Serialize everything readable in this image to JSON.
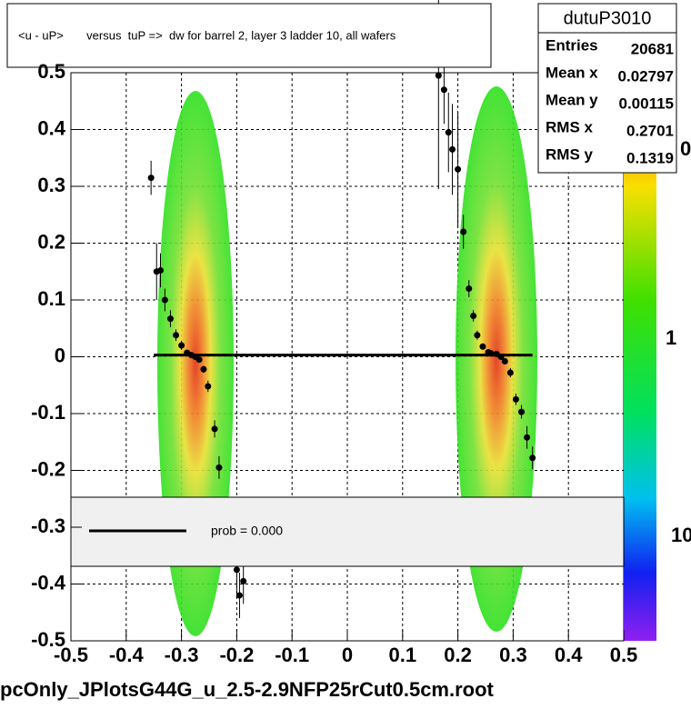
{
  "chart_data": {
    "type": "profile",
    "title": "<u - uP>       versus  tuP =>  dw for barrel 2, layer 3 ladder 10, all wafers",
    "xlim": [
      -0.5,
      0.5
    ],
    "ylim": [
      -0.5,
      0.5
    ],
    "xticks": [
      -0.5,
      -0.4,
      -0.3,
      -0.2,
      -0.1,
      0,
      0.1,
      0.2,
      0.3,
      0.4,
      0.5
    ],
    "yticks": [
      -0.5,
      -0.4,
      -0.3,
      -0.2,
      -0.1,
      0,
      0.1,
      0.2,
      0.3,
      0.4,
      0.5
    ],
    "grid": true,
    "color": "#000000",
    "points": {
      "x": [
        -0.355,
        -0.345,
        -0.338,
        -0.33,
        -0.32,
        -0.31,
        -0.3,
        -0.29,
        -0.282,
        -0.275,
        -0.268,
        -0.26,
        -0.252,
        -0.24,
        -0.232,
        -0.2,
        -0.195,
        -0.188,
        0.165,
        0.175,
        0.183,
        0.19,
        0.2,
        0.21,
        0.22,
        0.228,
        0.235,
        0.245,
        0.255,
        0.26,
        0.27,
        0.278,
        0.285,
        0.295,
        0.305,
        0.315,
        0.325,
        0.335
      ],
      "y": [
        0.315,
        0.15,
        0.152,
        0.1,
        0.067,
        0.038,
        0.02,
        0.007,
        0.003,
        0.0,
        -0.005,
        -0.022,
        -0.052,
        -0.127,
        -0.195,
        -0.375,
        -0.42,
        -0.395,
        0.495,
        0.47,
        0.395,
        0.365,
        0.33,
        0.22,
        0.12,
        0.072,
        0.038,
        0.018,
        0.008,
        0.006,
        0.005,
        0.0,
        -0.008,
        -0.028,
        -0.075,
        -0.097,
        -0.142,
        -0.178
      ],
      "errors": [
        0.03,
        0.05,
        0.03,
        0.02,
        0.015,
        0.01,
        0.008,
        0.005,
        0.004,
        0.003,
        0.004,
        0.006,
        0.01,
        0.015,
        0.02,
        0.05,
        0.04,
        0.04,
        0.2,
        0.06,
        0.07,
        0.08,
        0.1,
        0.03,
        0.015,
        0.01,
        0.008,
        0.005,
        0.004,
        0.003,
        0.003,
        0.004,
        0.005,
        0.008,
        0.01,
        0.012,
        0.02,
        0.02
      ]
    },
    "fit": {
      "x": [
        -0.35,
        0.335
      ],
      "y": [
        0.003,
        0.003
      ]
    },
    "legend": "prob = 0.000",
    "stats": {
      "title": "dutuP3010",
      "rows": [
        [
          "Entries",
          20681
        ],
        [
          "Mean x",
          0.02797
        ],
        [
          "Mean y",
          0.00115
        ],
        [
          "RMS x",
          0.2701
        ],
        [
          "RMS y",
          0.1319
        ]
      ]
    },
    "palette_labels": [
      "0",
      "1",
      "10"
    ],
    "footer": "pcOnly_JPlotsG44G_u_2.5-2.9NFP25rCut0.5cm.root"
  }
}
